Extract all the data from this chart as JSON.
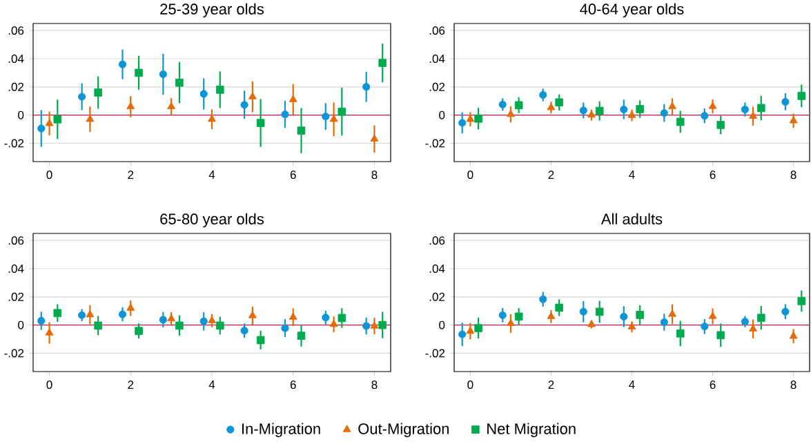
{
  "chart_data": [
    {
      "type": "scatter",
      "title": "25-39 year olds",
      "xlim": [
        -0.4,
        8.4
      ],
      "xticks": [
        0,
        2,
        4,
        6,
        8
      ],
      "ylim": [
        -0.033,
        0.065
      ],
      "yticks": [
        {
          "value": -0.02,
          "label": "-.02"
        },
        0,
        {
          "value": 0.02,
          "label": ".02"
        },
        {
          "value": 0.04,
          "label": ".04"
        },
        {
          "value": 0.06,
          "label": ".06"
        }
      ],
      "grid": "y",
      "legend": false,
      "ref_lines": [
        {
          "axis": "y",
          "value": 0,
          "color": "#d0104c"
        }
      ],
      "series": [
        {
          "color": "#0f95d6",
          "marker": "circle",
          "x": [
            -0.2,
            0.8,
            1.8,
            2.8,
            3.8,
            4.8,
            5.8,
            6.8,
            7.8
          ],
          "values": [
            -0.0095,
            0.013,
            0.036,
            0.029,
            0.015,
            0.0073,
            0.0005,
            -0.001,
            0.02
          ],
          "errors": [
            0.013,
            0.0095,
            0.0105,
            0.0145,
            0.011,
            0.01,
            0.0096,
            0.0095,
            0.0107
          ]
        },
        {
          "color": "#e26b0a",
          "marker": "triangle",
          "x": [
            0,
            1,
            2,
            3,
            4,
            5,
            6,
            7,
            8
          ],
          "values": [
            -0.006,
            -0.003,
            0.006,
            0.006,
            -0.003,
            0.013,
            0.011,
            -0.003,
            -0.017
          ],
          "errors": [
            0.0085,
            0.009,
            0.0075,
            0.006,
            0.007,
            0.011,
            0.011,
            0.012,
            0.0097
          ]
        },
        {
          "color": "#00aa4f",
          "marker": "square",
          "x": [
            0.2,
            1.2,
            2.2,
            3.2,
            4.2,
            5.2,
            6.2,
            7.2,
            8.2
          ],
          "values": [
            -0.003,
            0.016,
            0.03,
            0.023,
            0.018,
            -0.0056,
            -0.011,
            0.0024,
            0.037
          ],
          "errors": [
            0.014,
            0.0115,
            0.012,
            0.0146,
            0.013,
            0.017,
            0.016,
            0.017,
            0.0137
          ]
        }
      ]
    },
    {
      "type": "scatter",
      "title": "40-64 year olds",
      "xlim": [
        -0.4,
        8.4
      ],
      "xticks": [
        0,
        2,
        4,
        6,
        8
      ],
      "ylim": [
        -0.033,
        0.065
      ],
      "yticks": [
        {
          "value": -0.02,
          "label": "-.02"
        },
        0,
        {
          "value": 0.02,
          "label": ".02"
        },
        {
          "value": 0.04,
          "label": ".04"
        },
        {
          "value": 0.06,
          "label": ".06"
        }
      ],
      "grid": "y",
      "legend": false,
      "ref_lines": [
        {
          "axis": "y",
          "value": 0,
          "color": "#d0104c"
        }
      ],
      "series": [
        {
          "color": "#0f95d6",
          "marker": "circle",
          "x": [
            -0.2,
            0.8,
            1.8,
            2.8,
            3.8,
            4.8,
            5.8,
            6.8,
            7.8
          ],
          "values": [
            -0.0055,
            0.0075,
            0.0143,
            0.0033,
            0.004,
            0.0015,
            -0.0005,
            0.004,
            0.0094
          ],
          "errors": [
            0.0075,
            0.0044,
            0.0045,
            0.0056,
            0.0069,
            0.0063,
            0.0052,
            0.005,
            0.006
          ]
        },
        {
          "color": "#e26b0a",
          "marker": "triangle",
          "x": [
            0,
            1,
            2,
            3,
            4,
            5,
            6,
            7,
            8
          ],
          "values": [
            -0.003,
            0.0005,
            0.0053,
            0,
            -0.0002,
            0.006,
            0.0062,
            -0.0008,
            -0.004
          ],
          "errors": [
            0.005,
            0.0057,
            0.0042,
            0.0039,
            0.0041,
            0.006,
            0.005,
            0.0067,
            0.005
          ]
        },
        {
          "color": "#00aa4f",
          "marker": "square",
          "x": [
            0.2,
            1.2,
            2.2,
            3.2,
            4.2,
            5.2,
            6.2,
            7.2,
            8.2
          ],
          "values": [
            -0.0025,
            0.007,
            0.009,
            0.003,
            0.0042,
            -0.0048,
            -0.007,
            0.005,
            0.0136
          ],
          "errors": [
            0.0076,
            0.0057,
            0.0057,
            0.0068,
            0.0062,
            0.0078,
            0.0066,
            0.0087,
            0.008
          ]
        }
      ]
    },
    {
      "type": "scatter",
      "title": "65-80 year olds",
      "xlim": [
        -0.4,
        8.4
      ],
      "xticks": [
        0,
        2,
        4,
        6,
        8
      ],
      "ylim": [
        -0.033,
        0.065
      ],
      "yticks": [
        {
          "value": -0.02,
          "label": "-.02"
        },
        0,
        {
          "value": 0.02,
          "label": ".02"
        },
        {
          "value": 0.04,
          "label": ".04"
        },
        {
          "value": 0.06,
          "label": ".06"
        }
      ],
      "grid": "y",
      "legend": false,
      "ref_lines": [
        {
          "axis": "y",
          "value": 0,
          "color": "#d0104c"
        }
      ],
      "series": [
        {
          "color": "#0f95d6",
          "marker": "circle",
          "x": [
            -0.2,
            0.8,
            1.8,
            2.8,
            3.8,
            4.8,
            5.8,
            6.8,
            7.8
          ],
          "values": [
            0.003,
            0.007,
            0.0076,
            0.0038,
            0.0027,
            -0.004,
            -0.0022,
            0.0053,
            -0.0007
          ],
          "errors": [
            0.0064,
            0.0043,
            0.005,
            0.0055,
            0.0065,
            0.005,
            0.0064,
            0.0049,
            0.006
          ]
        },
        {
          "color": "#e26b0a",
          "marker": "triangle",
          "x": [
            0,
            1,
            2,
            3,
            4,
            5,
            6,
            7,
            8
          ],
          "values": [
            -0.0056,
            0.0073,
            0.012,
            0.0044,
            0.0031,
            0.0067,
            0.0056,
            0.0005,
            -0.0007
          ],
          "errors": [
            0.0076,
            0.0067,
            0.0055,
            0.0048,
            0.0047,
            0.0064,
            0.0063,
            0.0056,
            0.0058
          ]
        },
        {
          "color": "#00aa4f",
          "marker": "square",
          "x": [
            0.2,
            1.2,
            2.2,
            3.2,
            4.2,
            5.2,
            6.2,
            7.2,
            8.2
          ],
          "values": [
            0.0085,
            -0.0004,
            -0.0042,
            -0.0004,
            -0.0004,
            -0.0107,
            -0.0076,
            0.005,
            0
          ],
          "errors": [
            0.0062,
            0.0068,
            0.0054,
            0.0072,
            0.0063,
            0.0066,
            0.0076,
            0.007,
            0.0094
          ]
        }
      ]
    },
    {
      "type": "scatter",
      "title": "All adults",
      "xlim": [
        -0.4,
        8.4
      ],
      "xticks": [
        0,
        2,
        4,
        6,
        8
      ],
      "ylim": [
        -0.033,
        0.065
      ],
      "yticks": [
        {
          "value": -0.02,
          "label": "-.02"
        },
        0,
        {
          "value": 0.02,
          "label": ".02"
        },
        {
          "value": 0.04,
          "label": ".04"
        },
        {
          "value": 0.06,
          "label": ".06"
        }
      ],
      "grid": "y",
      "legend": "bottom",
      "ref_lines": [
        {
          "axis": "y",
          "value": 0,
          "color": "#d0104c"
        }
      ],
      "series": [
        {
          "name": "In-Migration",
          "color": "#0f95d6",
          "marker": "circle",
          "x": [
            -0.2,
            0.8,
            1.8,
            2.8,
            3.8,
            4.8,
            5.8,
            6.8,
            7.8
          ],
          "values": [
            -0.0066,
            0.007,
            0.0183,
            0.0095,
            0.006,
            0.002,
            -0.001,
            0.0024,
            0.0095
          ],
          "errors": [
            0.0083,
            0.0051,
            0.0052,
            0.0075,
            0.0074,
            0.006,
            0.0053,
            0.004,
            0.0053
          ]
        },
        {
          "name": "Out-Migration",
          "color": "#e26b0a",
          "marker": "triangle",
          "x": [
            0,
            1,
            2,
            3,
            4,
            5,
            6,
            7,
            8
          ],
          "values": [
            -0.0044,
            0.0011,
            0.006,
            0.0004,
            -0.0013,
            0.0077,
            0.0062,
            -0.0028,
            -0.0079
          ],
          "errors": [
            0.0058,
            0.0066,
            0.0046,
            0.0028,
            0.0039,
            0.007,
            0.0056,
            0.0067,
            0.005
          ]
        },
        {
          "name": "Net Migration",
          "color": "#00aa4f",
          "marker": "square",
          "x": [
            0.2,
            1.2,
            2.2,
            3.2,
            4.2,
            5.2,
            6.2,
            7.2,
            8.2
          ],
          "values": [
            -0.0022,
            0.006,
            0.0123,
            0.0094,
            0.0072,
            -0.006,
            -0.0072,
            0.0051,
            0.017
          ],
          "errors": [
            0.0074,
            0.006,
            0.0059,
            0.0078,
            0.0068,
            0.009,
            0.0083,
            0.0084,
            0.0075
          ]
        }
      ]
    }
  ]
}
